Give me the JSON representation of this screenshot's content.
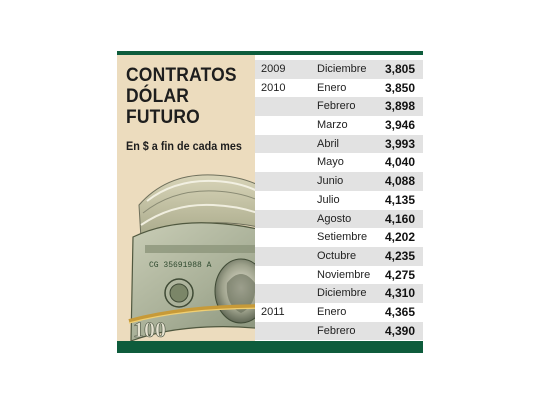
{
  "title_lines": [
    "CONTRATOS",
    "DÓLAR",
    "FUTURO"
  ],
  "subtitle": "En $ a fin de cada mes",
  "colors": {
    "accent_green": "#0e5c3c",
    "panel_beige": "#ecdcbe",
    "row_shade": "#e2e2e2"
  },
  "illustration": {
    "icon": "dollar-bill-roll",
    "serial": "CG 35691988 A",
    "denomination": "100"
  },
  "chart_data": {
    "type": "table",
    "columns": [
      "year",
      "month",
      "value"
    ],
    "rows": [
      {
        "year": "2009",
        "month": "Diciembre",
        "value": "3,805"
      },
      {
        "year": "2010",
        "month": "Enero",
        "value": "3,850"
      },
      {
        "year": "",
        "month": "Febrero",
        "value": "3,898"
      },
      {
        "year": "",
        "month": "Marzo",
        "value": "3,946"
      },
      {
        "year": "",
        "month": "Abril",
        "value": "3,993"
      },
      {
        "year": "",
        "month": "Mayo",
        "value": "4,040"
      },
      {
        "year": "",
        "month": "Junio",
        "value": "4,088"
      },
      {
        "year": "",
        "month": "Julio",
        "value": "4,135"
      },
      {
        "year": "",
        "month": "Agosto",
        "value": "4,160"
      },
      {
        "year": "",
        "month": "Setiembre",
        "value": "4,202"
      },
      {
        "year": "",
        "month": "Octubre",
        "value": "4,235"
      },
      {
        "year": "",
        "month": "Noviembre",
        "value": "4,275"
      },
      {
        "year": "",
        "month": "Diciembre",
        "value": "4,310"
      },
      {
        "year": "2011",
        "month": "Enero",
        "value": "4,365"
      },
      {
        "year": "",
        "month": "Febrero",
        "value": "4,390"
      }
    ]
  }
}
